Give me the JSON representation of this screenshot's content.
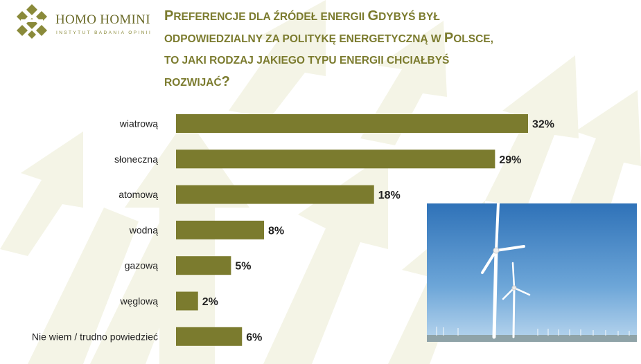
{
  "logo": {
    "name": "HOMO HOMINI",
    "subtitle": "INSTYTUT BADANIA OPINII"
  },
  "title": {
    "line1_cap": "P",
    "line1_rest": "REFERENCJE DLA ŹRÓDEŁ ENERGII ",
    "line1_cap2": "G",
    "line1_rest2": "DYBYŚ BYŁ",
    "line2": "ODPOWIEDZIALNY ZA POLITYKĘ ENERGETYCZNĄ W ",
    "line2_cap": "P",
    "line2_rest": "OLSCE,",
    "line3": "TO JAKI RODZAJ JAKIEGO TYPU ENERGII CHCIAŁBYŚ",
    "line4": "ROZWIJAĆ",
    "line4_cap": "?"
  },
  "colors": {
    "bar": "#7b7b2e",
    "title": "#7b7b2e",
    "arrows": "#f3f3e2",
    "label": "#222222",
    "value": "#222222"
  },
  "photo": {
    "icon": "wind-turbine-photo"
  },
  "chart_data": {
    "type": "bar",
    "orientation": "horizontal",
    "categories": [
      "wiatrową",
      "słoneczną",
      "atomową",
      "wodną",
      "gazową",
      "węglową",
      "Nie wiem / trudno powiedzieć"
    ],
    "values": [
      32,
      29,
      18,
      8,
      5,
      2,
      6
    ],
    "value_suffix": "%",
    "xlim": [
      0,
      32
    ],
    "grid": false,
    "legend": "none"
  }
}
